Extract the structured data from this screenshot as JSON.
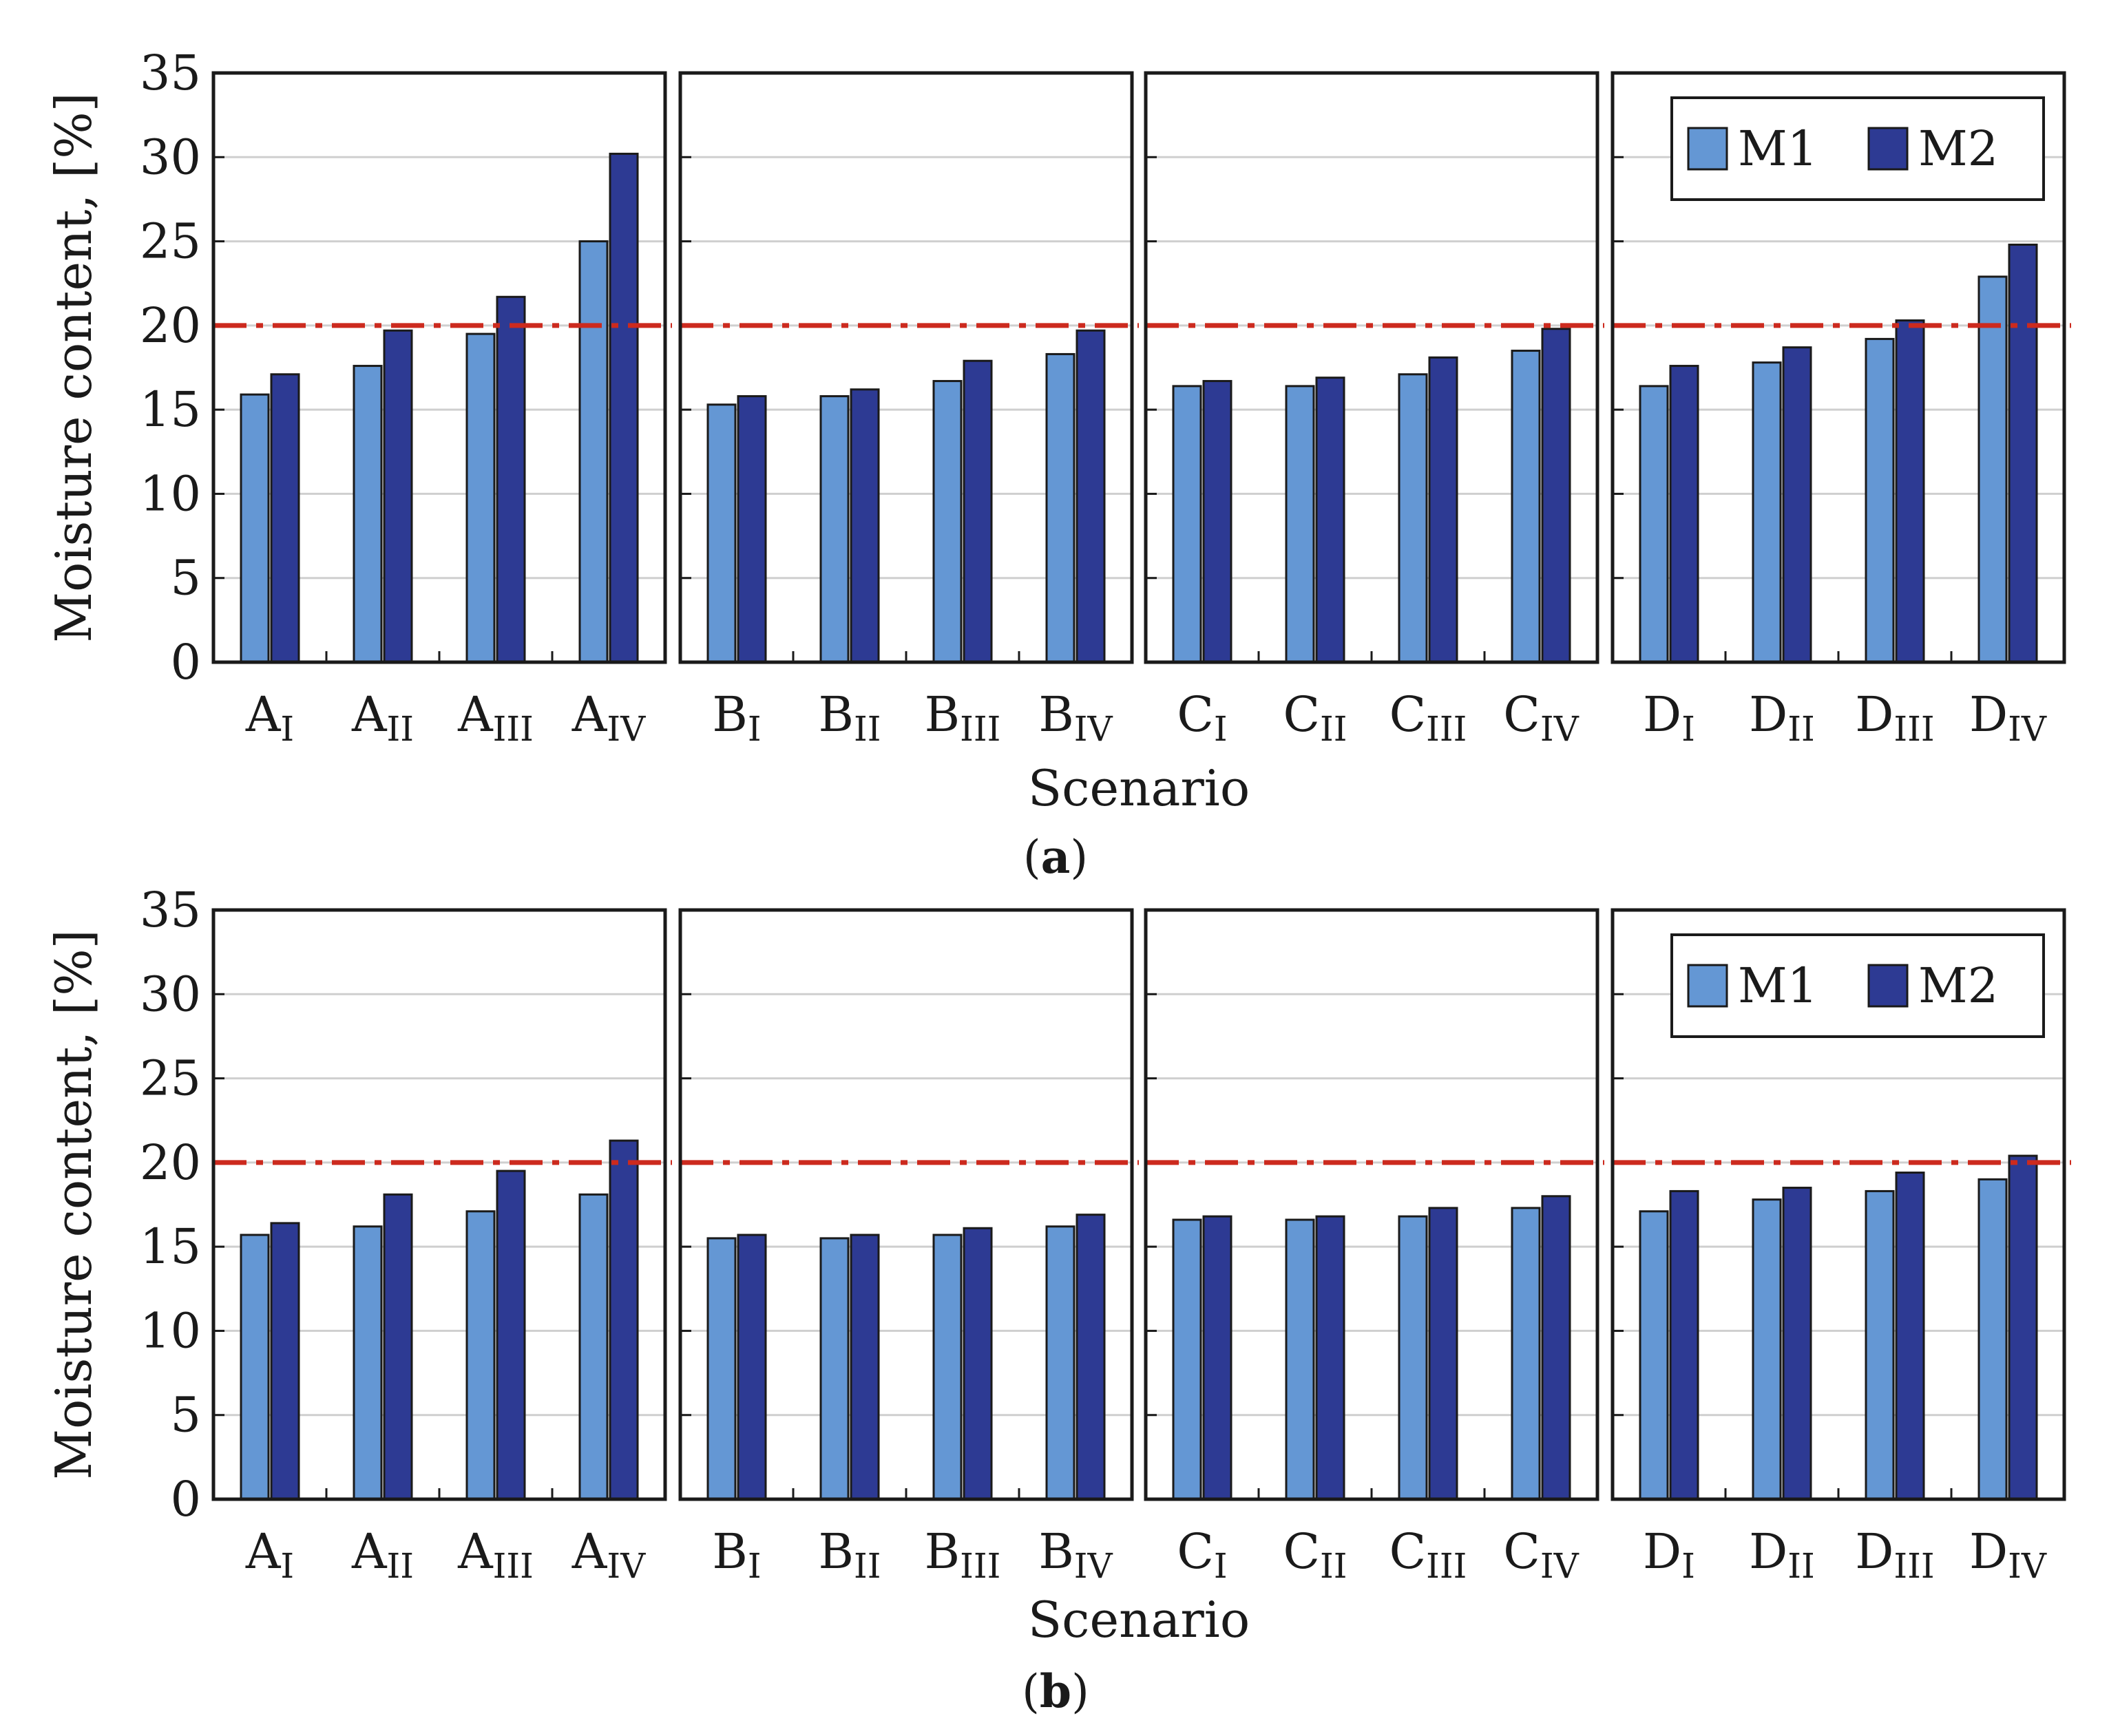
{
  "colors": {
    "M1": "#6497d4",
    "M2": "#2d3a93",
    "threshold": "#cc2a1e"
  },
  "chart_data": [
    {
      "type": "bar",
      "panel_label": "a",
      "xlabel": "Scenario",
      "ylabel": "Moisture content, [%]",
      "ylim": [
        0,
        35
      ],
      "yticks": [
        0,
        5,
        10,
        15,
        20,
        25,
        30,
        35
      ],
      "threshold": 20,
      "legend": {
        "entries": [
          "M1",
          "M2"
        ],
        "placement": "top-right of last group"
      },
      "groups": [
        {
          "name": "A",
          "categories": [
            {
              "main": "A",
              "sub": "I"
            },
            {
              "main": "A",
              "sub": "II"
            },
            {
              "main": "A",
              "sub": "III"
            },
            {
              "main": "A",
              "sub": "IV"
            }
          ]
        },
        {
          "name": "B",
          "categories": [
            {
              "main": "B",
              "sub": "I"
            },
            {
              "main": "B",
              "sub": "II"
            },
            {
              "main": "B",
              "sub": "III"
            },
            {
              "main": "B",
              "sub": "IV"
            }
          ]
        },
        {
          "name": "C",
          "categories": [
            {
              "main": "C",
              "sub": "I"
            },
            {
              "main": "C",
              "sub": "II"
            },
            {
              "main": "C",
              "sub": "III"
            },
            {
              "main": "C",
              "sub": "IV"
            }
          ]
        },
        {
          "name": "D",
          "categories": [
            {
              "main": "D",
              "sub": "I"
            },
            {
              "main": "D",
              "sub": "II"
            },
            {
              "main": "D",
              "sub": "III"
            },
            {
              "main": "D",
              "sub": "IV"
            }
          ]
        }
      ],
      "series": [
        {
          "name": "M1",
          "values": [
            15.9,
            17.6,
            19.5,
            25.0,
            15.3,
            15.8,
            16.7,
            18.3,
            16.4,
            16.4,
            17.1,
            18.5,
            16.4,
            17.8,
            19.2,
            22.9
          ]
        },
        {
          "name": "M2",
          "values": [
            17.1,
            19.7,
            21.7,
            30.2,
            15.8,
            16.2,
            17.9,
            19.7,
            16.7,
            16.9,
            18.1,
            19.8,
            17.6,
            18.7,
            20.3,
            24.8
          ]
        }
      ]
    },
    {
      "type": "bar",
      "panel_label": "b",
      "xlabel": "Scenario",
      "ylabel": "Moisture content, [%]",
      "ylim": [
        0,
        35
      ],
      "yticks": [
        0,
        5,
        10,
        15,
        20,
        25,
        30,
        35
      ],
      "threshold": 20,
      "legend": {
        "entries": [
          "M1",
          "M2"
        ],
        "placement": "top-right of last group"
      },
      "groups": [
        {
          "name": "A",
          "categories": [
            {
              "main": "A",
              "sub": "I"
            },
            {
              "main": "A",
              "sub": "II"
            },
            {
              "main": "A",
              "sub": "III"
            },
            {
              "main": "A",
              "sub": "IV"
            }
          ]
        },
        {
          "name": "B",
          "categories": [
            {
              "main": "B",
              "sub": "I"
            },
            {
              "main": "B",
              "sub": "II"
            },
            {
              "main": "B",
              "sub": "III"
            },
            {
              "main": "B",
              "sub": "IV"
            }
          ]
        },
        {
          "name": "C",
          "categories": [
            {
              "main": "C",
              "sub": "I"
            },
            {
              "main": "C",
              "sub": "II"
            },
            {
              "main": "C",
              "sub": "III"
            },
            {
              "main": "C",
              "sub": "IV"
            }
          ]
        },
        {
          "name": "D",
          "categories": [
            {
              "main": "D",
              "sub": "I"
            },
            {
              "main": "D",
              "sub": "II"
            },
            {
              "main": "D",
              "sub": "III"
            },
            {
              "main": "D",
              "sub": "IV"
            }
          ]
        }
      ],
      "series": [
        {
          "name": "M1",
          "values": [
            15.7,
            16.2,
            17.1,
            18.1,
            15.5,
            15.5,
            15.7,
            16.2,
            16.6,
            16.6,
            16.8,
            17.3,
            17.1,
            17.8,
            18.3,
            19.0
          ]
        },
        {
          "name": "M2",
          "values": [
            16.4,
            18.1,
            19.5,
            21.3,
            15.7,
            15.7,
            16.1,
            16.9,
            16.8,
            16.8,
            17.3,
            18.0,
            18.3,
            18.5,
            19.4,
            20.4
          ]
        }
      ]
    }
  ]
}
